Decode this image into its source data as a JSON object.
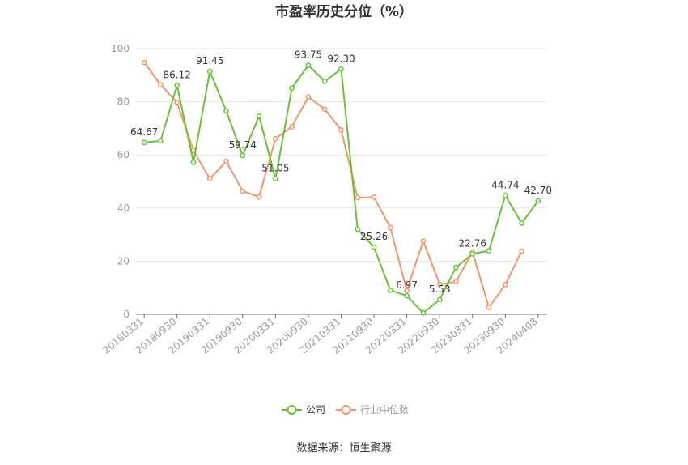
{
  "chart_data": {
    "type": "line",
    "title": "市盈率历史分位（%）",
    "source": "数据来源：恒生聚源",
    "ylim": [
      0,
      100
    ],
    "yticks": [
      0,
      20,
      40,
      60,
      80,
      100
    ],
    "x": [
      "20180331",
      "20180630",
      "20180930",
      "20181231",
      "20190331",
      "20190630",
      "20190930",
      "20191231",
      "20200331",
      "20200630",
      "20200930",
      "20201231",
      "20210331",
      "20210630",
      "20210930",
      "20211231",
      "20220331",
      "20220630",
      "20220930",
      "20221231",
      "20230331",
      "20230630",
      "20230930",
      "20231231",
      "20240408"
    ],
    "xtick_labels": [
      "20180331",
      "20180930",
      "20190331",
      "20190930",
      "20200331",
      "20200930",
      "20210331",
      "20210930",
      "20220331",
      "20220930",
      "20230331",
      "20230930",
      "20240408"
    ],
    "series": [
      {
        "name": "公司",
        "color": "#67c23a",
        "values": [
          64.67,
          65.3,
          86.12,
          57.2,
          91.45,
          76.5,
          59.74,
          74.6,
          51.05,
          85.2,
          93.75,
          87.7,
          92.3,
          32.0,
          25.26,
          9.0,
          6.97,
          0.5,
          5.53,
          17.7,
          22.76,
          23.9,
          44.74,
          34.3,
          42.7
        ],
        "labels": {
          "0": "64.67",
          "2": "86.12",
          "4": "91.45",
          "6": "59.74",
          "8": "51.05",
          "10": "93.75",
          "12": "92.30",
          "14": "25.26",
          "16": "6.97",
          "18": "5.53",
          "20": "22.76",
          "22": "44.74",
          "24": "42.70"
        }
      },
      {
        "name": "行业中位数",
        "color": "#f4956a",
        "values": [
          94.8,
          86.4,
          79.8,
          61.6,
          51.0,
          57.6,
          46.4,
          44.2,
          66.1,
          70.6,
          81.8,
          77.2,
          69.4,
          43.9,
          44.1,
          32.6,
          8.9,
          27.6,
          11.3,
          12.3,
          23.5,
          2.6,
          11.2,
          23.8,
          null
        ]
      }
    ],
    "legend": {
      "position": "bottom",
      "items": [
        "公司",
        "行业中位数"
      ]
    }
  }
}
